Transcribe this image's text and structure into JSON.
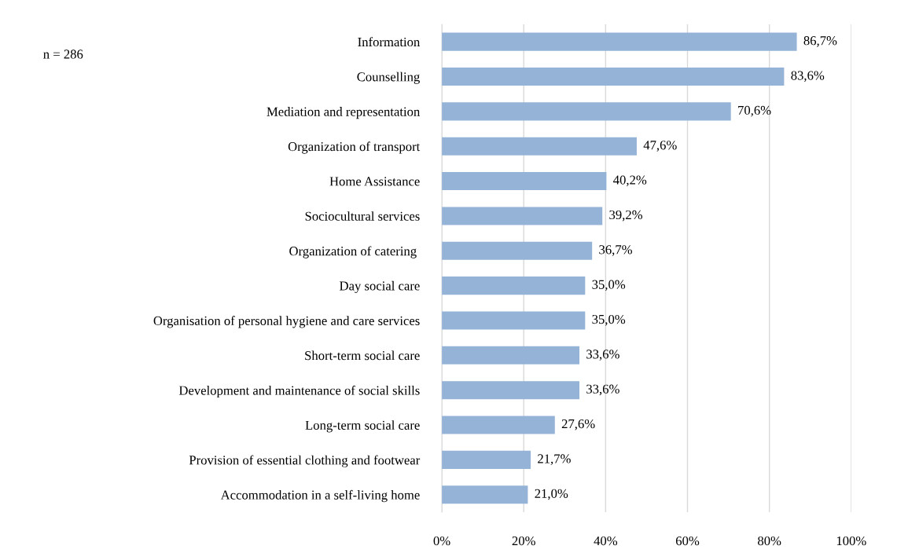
{
  "chart_data": {
    "type": "bar",
    "orientation": "horizontal",
    "categories": [
      "Information",
      "Counselling",
      "Mediation and representation",
      "Organization of transport",
      "Home Assistance",
      "Sociocultural services",
      "Organization of catering ",
      "Day social care",
      "Organisation of personal hygiene and care services",
      "Short-term social care",
      "Development and maintenance of social skills",
      "Long-term social care",
      "Provision of essential clothing and footwear",
      "Accommodation in a self-living home"
    ],
    "values": [
      86.7,
      83.6,
      70.6,
      47.6,
      40.2,
      39.2,
      36.7,
      35.0,
      35.0,
      33.6,
      33.6,
      27.6,
      21.7,
      21.0
    ],
    "value_labels": [
      "86,7%",
      "83,6%",
      "70,6%",
      "47,6%",
      "40,2%",
      "39,2%",
      "36,7%",
      "35,0%",
      "35,0%",
      "33,6%",
      "33,6%",
      "27,6%",
      "21,7%",
      "21,0%"
    ],
    "color": "#95b3d7",
    "xlim": [
      0,
      100
    ],
    "xticks": [
      {
        "value": 0,
        "label": "0%"
      },
      {
        "value": 20,
        "label": "20%"
      },
      {
        "value": 40,
        "label": "40%"
      },
      {
        "value": 60,
        "label": "60%"
      },
      {
        "value": 80,
        "label": "80%"
      },
      {
        "value": 100,
        "label": "100%"
      }
    ],
    "grid": "x",
    "annotations": [
      "n = 286"
    ]
  }
}
